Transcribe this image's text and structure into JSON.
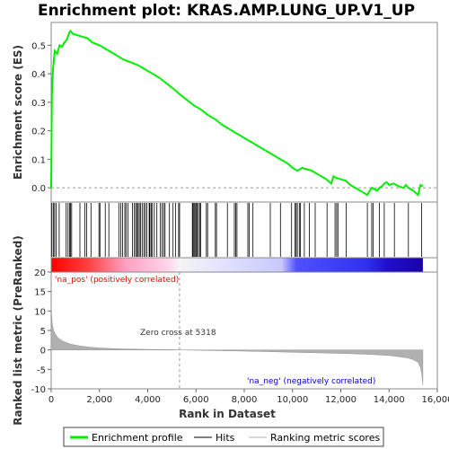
{
  "chart_data": {
    "type": "line",
    "title": "Enrichment plot: KRAS.AMP.LUNG_UP.V1_UP",
    "es_panel": {
      "ylabel": "Enrichment score (ES)",
      "ylim": [
        -0.05,
        0.58
      ],
      "yticks": [
        0.0,
        0.1,
        0.2,
        0.3,
        0.4,
        0.5
      ],
      "ytick_labels": [
        "0.0",
        "0.1",
        "0.2",
        "0.3",
        "0.4",
        "0.5"
      ],
      "line_color": "#00ee00",
      "x": [
        0,
        30,
        80,
        150,
        250,
        350,
        450,
        550,
        650,
        750,
        800,
        900,
        1100,
        1300,
        1500,
        1700,
        2000,
        2200,
        2500,
        2800,
        3000,
        3300,
        3600,
        3900,
        4200,
        4500,
        4800,
        5100,
        5300,
        5600,
        5900,
        6200,
        6500,
        6800,
        7100,
        7400,
        7700,
        8000,
        8300,
        8600,
        8900,
        9200,
        9500,
        9800,
        10000,
        10200,
        10400,
        10600,
        10800,
        11000,
        11200,
        11400,
        11600,
        11700,
        11800,
        12000,
        12200,
        12400,
        12600,
        12800,
        13000,
        13100,
        13200,
        13300,
        13400,
        13500,
        13600,
        13700,
        13800,
        13900,
        14000,
        14200,
        14400,
        14600,
        14700,
        14800,
        15000,
        15200,
        15300,
        15400
      ],
      "values": [
        0.0,
        0.33,
        0.42,
        0.48,
        0.47,
        0.5,
        0.495,
        0.51,
        0.52,
        0.545,
        0.55,
        0.54,
        0.535,
        0.53,
        0.525,
        0.51,
        0.5,
        0.49,
        0.475,
        0.46,
        0.45,
        0.44,
        0.43,
        0.415,
        0.4,
        0.385,
        0.365,
        0.345,
        0.33,
        0.31,
        0.29,
        0.275,
        0.255,
        0.24,
        0.22,
        0.205,
        0.19,
        0.175,
        0.16,
        0.145,
        0.13,
        0.115,
        0.1,
        0.085,
        0.07,
        0.06,
        0.07,
        0.065,
        0.06,
        0.05,
        0.04,
        0.03,
        0.015,
        0.04,
        0.035,
        0.03,
        0.025,
        0.01,
        0.0,
        -0.01,
        -0.02,
        -0.025,
        -0.01,
        0.0,
        -0.005,
        -0.01,
        0.0,
        0.005,
        0.015,
        0.02,
        0.01,
        0.015,
        0.005,
        0.0,
        0.01,
        0.0,
        -0.01,
        -0.025,
        0.01,
        0.005
      ]
    },
    "hits": [
      30,
      90,
      140,
      210,
      330,
      620,
      700,
      760,
      800,
      850,
      1190,
      1400,
      1470,
      1650,
      1980,
      2020,
      2240,
      2390,
      2800,
      2880,
      2960,
      3050,
      3100,
      3180,
      3370,
      3450,
      3500,
      3550,
      3600,
      3650,
      3700,
      3770,
      3840,
      3900,
      3960,
      4060,
      4090,
      4140,
      4180,
      4270,
      4380,
      4520,
      4590,
      4660,
      4720,
      4900,
      5050,
      5150,
      5280,
      5320,
      5850,
      5880,
      5920,
      5960,
      6000,
      6050,
      6100,
      6150,
      6190,
      6430,
      6480,
      6800,
      6850,
      7300,
      7590,
      7650,
      7700,
      8150,
      8200,
      8360,
      9080,
      9500,
      9960,
      10100,
      10150,
      10200,
      10280,
      10330,
      10490,
      10700,
      10940,
      11430,
      11760,
      11830,
      11880,
      12220,
      13100,
      13280,
      13340,
      13600,
      13800,
      14220,
      14800,
      15350
    ],
    "ranked_panel": {
      "ylabel": "Ranked list metric (PreRanked)",
      "ylim": [
        -10,
        20
      ],
      "yticks": [
        -10,
        -5,
        0,
        5,
        10,
        15,
        20
      ],
      "ytick_labels": [
        "-10",
        "-5",
        "0",
        "5",
        "10",
        "15",
        "20"
      ],
      "x": [
        0,
        20,
        50,
        100,
        200,
        300,
        500,
        800,
        1200,
        1600,
        2000,
        2500,
        3000,
        4000,
        5000,
        5318,
        6000,
        7000,
        8000,
        9000,
        10000,
        11000,
        12000,
        13000,
        13500,
        14000,
        14500,
        14800,
        15000,
        15200,
        15300,
        15350,
        15400
      ],
      "values": [
        12.0,
        9.0,
        6.5,
        5.0,
        3.8,
        3.0,
        2.2,
        1.5,
        1.0,
        0.7,
        0.5,
        0.35,
        0.25,
        0.12,
        0.05,
        0.0,
        -0.08,
        -0.2,
        -0.3,
        -0.45,
        -0.6,
        -0.75,
        -0.9,
        -1.1,
        -1.25,
        -1.45,
        -1.8,
        -2.1,
        -2.5,
        -3.2,
        -4.5,
        -6.0,
        -9.0
      ],
      "fill_color": "#b0b0b0"
    },
    "xlabel": "Rank in Dataset",
    "xlim": [
      0,
      16000
    ],
    "xticks": [
      0,
      2000,
      4000,
      6000,
      8000,
      10000,
      12000,
      14000,
      16000
    ],
    "xtick_labels": [
      "0",
      "2,000",
      "4,000",
      "6,000",
      "8,000",
      "10,000",
      "12,000",
      "14,000",
      "16,000"
    ],
    "zero_cross_rank": 5318,
    "dataset_size": 15400,
    "annotations": {
      "zero_cross": "Zero cross at 5318",
      "pos_label": "'na_pos' (positively correlated)",
      "neg_label": "'na_neg' (negatively correlated)",
      "pos_color": "#ff0000",
      "neg_color": "#0000cc"
    },
    "legend": {
      "placement": "bottom",
      "items": [
        {
          "label": "Enrichment profile",
          "color": "#00ee00"
        },
        {
          "label": "Hits",
          "color": "#000000"
        },
        {
          "label": "Ranking metric scores",
          "color": "#b0b0b0"
        }
      ]
    }
  }
}
